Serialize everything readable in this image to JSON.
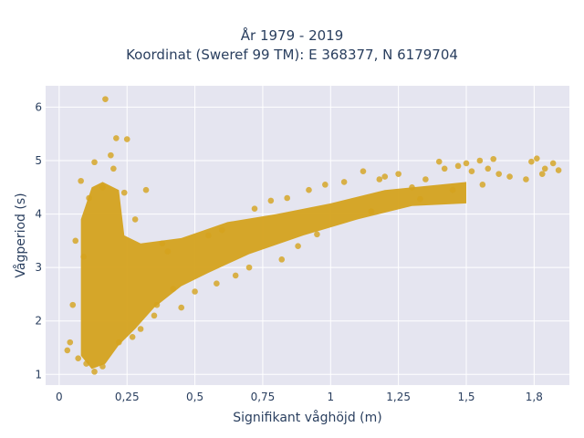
{
  "chart_data": {
    "type": "scatter",
    "title_lines": [
      "År 1979 - 2019",
      "Koordinat (Sweref 99 TM): E 368377, N 6179704"
    ],
    "xlabel": "Signifikant våghöjd (m)",
    "ylabel": "Vågperiod (s)",
    "xlim": [
      -0.05,
      1.88
    ],
    "ylim": [
      0.8,
      6.4
    ],
    "xticks": [
      0,
      0.25,
      0.5,
      0.75,
      1,
      1.25,
      1.5,
      1.75
    ],
    "xtick_labels": [
      "0",
      "0,25",
      "0,5",
      "0,75",
      "1",
      "1,25",
      "1,5",
      "1,8"
    ],
    "yticks": [
      1,
      2,
      3,
      4,
      5,
      6
    ],
    "ytick_labels": [
      "1",
      "2",
      "3",
      "4",
      "5",
      "6"
    ],
    "grid": true,
    "background": "#e5e5f0",
    "marker_color": "#d4a21d",
    "series": [
      {
        "points": [
          [
            0.17,
            6.15
          ],
          [
            0.21,
            5.42
          ],
          [
            0.25,
            5.4
          ],
          [
            0.19,
            5.1
          ],
          [
            0.13,
            4.97
          ],
          [
            0.2,
            4.85
          ],
          [
            0.08,
            4.62
          ],
          [
            0.16,
            4.5
          ],
          [
            0.32,
            4.45
          ],
          [
            0.11,
            4.3
          ],
          [
            0.24,
            4.4
          ],
          [
            0.28,
            3.9
          ],
          [
            0.06,
            3.5
          ],
          [
            0.09,
            3.2
          ],
          [
            0.05,
            2.3
          ],
          [
            0.04,
            1.6
          ],
          [
            0.03,
            1.45
          ],
          [
            0.07,
            1.3
          ],
          [
            0.1,
            1.2
          ],
          [
            0.13,
            1.05
          ],
          [
            0.16,
            1.15
          ],
          [
            0.22,
            1.6
          ],
          [
            0.3,
            1.85
          ],
          [
            0.36,
            2.3
          ],
          [
            0.42,
            2.6
          ],
          [
            0.4,
            3.3
          ],
          [
            0.38,
            3.45
          ],
          [
            0.55,
            3.6
          ],
          [
            0.6,
            3.7
          ],
          [
            0.5,
            2.55
          ],
          [
            0.58,
            2.7
          ],
          [
            0.7,
            3.0
          ],
          [
            0.72,
            4.1
          ],
          [
            0.78,
            4.25
          ],
          [
            0.84,
            4.3
          ],
          [
            0.92,
            4.45
          ],
          [
            0.98,
            4.55
          ],
          [
            1.05,
            4.6
          ],
          [
            1.12,
            4.8
          ],
          [
            1.18,
            4.65
          ],
          [
            1.2,
            4.7
          ],
          [
            1.25,
            4.75
          ],
          [
            1.3,
            4.5
          ],
          [
            1.35,
            4.65
          ],
          [
            1.4,
            4.98
          ],
          [
            1.42,
            4.85
          ],
          [
            1.47,
            4.9
          ],
          [
            1.5,
            4.95
          ],
          [
            1.52,
            4.8
          ],
          [
            1.55,
            5.0
          ],
          [
            1.58,
            4.85
          ],
          [
            1.6,
            5.03
          ],
          [
            1.62,
            4.75
          ],
          [
            1.66,
            4.7
          ],
          [
            1.72,
            4.65
          ],
          [
            1.76,
            5.04
          ],
          [
            1.74,
            4.98
          ],
          [
            1.79,
            4.85
          ],
          [
            1.82,
            4.95
          ],
          [
            1.84,
            4.82
          ],
          [
            1.78,
            4.75
          ],
          [
            1.56,
            4.55
          ],
          [
            1.45,
            4.45
          ],
          [
            1.33,
            4.28
          ],
          [
            1.15,
            4.05
          ],
          [
            0.95,
            3.62
          ],
          [
            0.88,
            3.4
          ],
          [
            0.82,
            3.15
          ],
          [
            0.65,
            2.85
          ],
          [
            0.45,
            2.25
          ],
          [
            0.35,
            2.1
          ],
          [
            0.27,
            1.7
          ]
        ]
      }
    ]
  }
}
